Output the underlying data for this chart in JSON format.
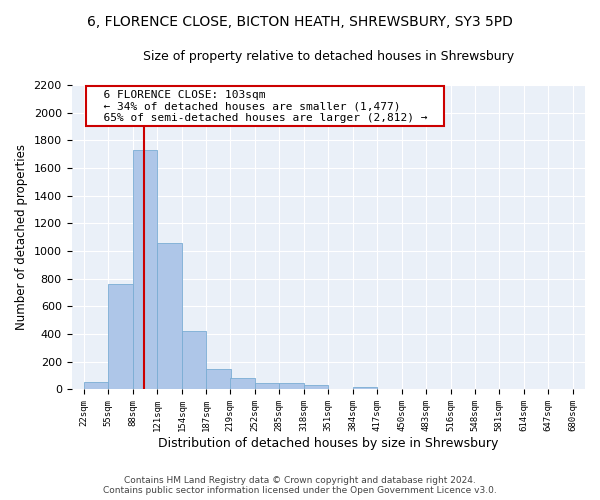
{
  "title": "6, FLORENCE CLOSE, BICTON HEATH, SHREWSBURY, SY3 5PD",
  "subtitle": "Size of property relative to detached houses in Shrewsbury",
  "xlabel": "Distribution of detached houses by size in Shrewsbury",
  "ylabel": "Number of detached properties",
  "footer_line1": "Contains HM Land Registry data © Crown copyright and database right 2024.",
  "footer_line2": "Contains public sector information licensed under the Open Government Licence v3.0.",
  "annotation_line1": "6 FLORENCE CLOSE: 103sqm",
  "annotation_line2": "← 34% of detached houses are smaller (1,477)",
  "annotation_line3": "65% of semi-detached houses are larger (2,812) →",
  "property_size": 103,
  "bin_edges": [
    22,
    55,
    88,
    121,
    154,
    187,
    219,
    252,
    285,
    318,
    351,
    384,
    417,
    450,
    483,
    516,
    548,
    581,
    614,
    647,
    680
  ],
  "bar_heights": [
    55,
    760,
    1730,
    1060,
    420,
    150,
    85,
    50,
    45,
    30,
    0,
    20,
    0,
    0,
    0,
    0,
    0,
    0,
    0,
    0
  ],
  "bar_color": "#aec6e8",
  "bar_edge_color": "#7aadd4",
  "vline_color": "#cc0000",
  "vline_x": 103,
  "ylim": [
    0,
    2200
  ],
  "yticks": [
    0,
    200,
    400,
    600,
    800,
    1000,
    1200,
    1400,
    1600,
    1800,
    2000,
    2200
  ],
  "bg_color": "#eaf0f8",
  "annotation_box_color": "#cc0000",
  "title_fontsize": 10,
  "subtitle_fontsize": 9,
  "xlabel_fontsize": 9,
  "ylabel_fontsize": 8.5
}
